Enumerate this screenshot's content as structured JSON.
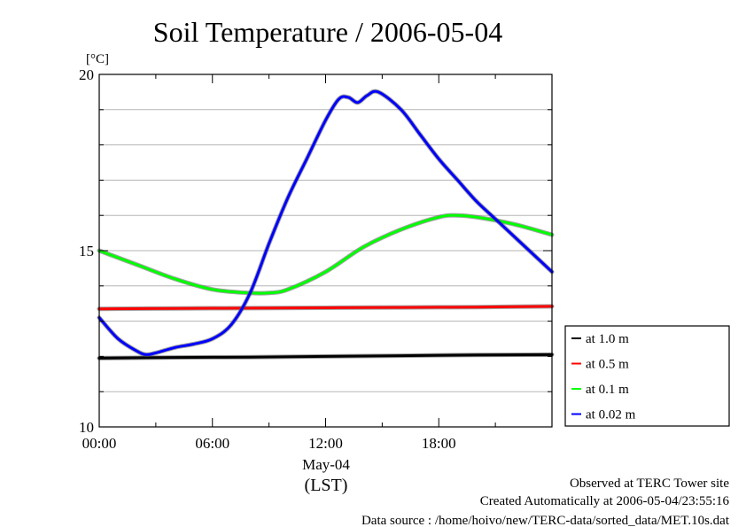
{
  "chart_data": {
    "type": "line",
    "title": "Soil Temperature / 2006-05-04",
    "ylabel": "[°C]",
    "xlabel_date": "May-04",
    "xlabel_unit": "(LST)",
    "ylim": [
      10,
      20
    ],
    "yticks": [
      "10",
      "15",
      "20"
    ],
    "xlim": [
      0,
      24
    ],
    "xticks": [
      "00:00",
      "06:00",
      "12:00",
      "18:00"
    ],
    "grid": true,
    "legend_position": "right",
    "series": [
      {
        "name": "at 1.0 m",
        "color": "#000000",
        "x": [
          0,
          4,
          8,
          12,
          16,
          20,
          24
        ],
        "y": [
          11.95,
          11.97,
          11.98,
          12.0,
          12.02,
          12.04,
          12.05
        ]
      },
      {
        "name": "at 0.5 m",
        "color": "#ff0000",
        "x": [
          0,
          4,
          8,
          12,
          16,
          20,
          24
        ],
        "y": [
          13.35,
          13.36,
          13.37,
          13.38,
          13.39,
          13.4,
          13.42
        ]
      },
      {
        "name": "at 0.1 m",
        "color": "#00ff00",
        "x": [
          0,
          2,
          4,
          6,
          8,
          9,
          10,
          12,
          14,
          16,
          18,
          19,
          20,
          22,
          24
        ],
        "y": [
          15.0,
          14.6,
          14.2,
          13.9,
          13.8,
          13.8,
          13.9,
          14.4,
          15.1,
          15.6,
          15.95,
          16.0,
          15.95,
          15.75,
          15.45
        ]
      },
      {
        "name": "at 0.02 m",
        "color": "#0000ff",
        "x": [
          0,
          1,
          2,
          2.5,
          3,
          4,
          5,
          6,
          7,
          8,
          9,
          10,
          11,
          12,
          12.7,
          13.2,
          13.7,
          14.2,
          14.8,
          16,
          17,
          18,
          19,
          20,
          21,
          22,
          23,
          24
        ],
        "y": [
          13.1,
          12.5,
          12.15,
          12.05,
          12.1,
          12.25,
          12.35,
          12.5,
          12.9,
          13.8,
          15.2,
          16.5,
          17.6,
          18.7,
          19.3,
          19.35,
          19.2,
          19.4,
          19.5,
          19.0,
          18.3,
          17.6,
          17.0,
          16.4,
          15.9,
          15.4,
          14.9,
          14.4
        ]
      }
    ]
  },
  "footer": {
    "line1": "Observed at TERC Tower site",
    "line2": "Created Automatically at 2006-05-04/23:55:16",
    "line3": "Data source : /home/hoivo/new/TERC-data/sorted_data/MET.10s.dat"
  }
}
